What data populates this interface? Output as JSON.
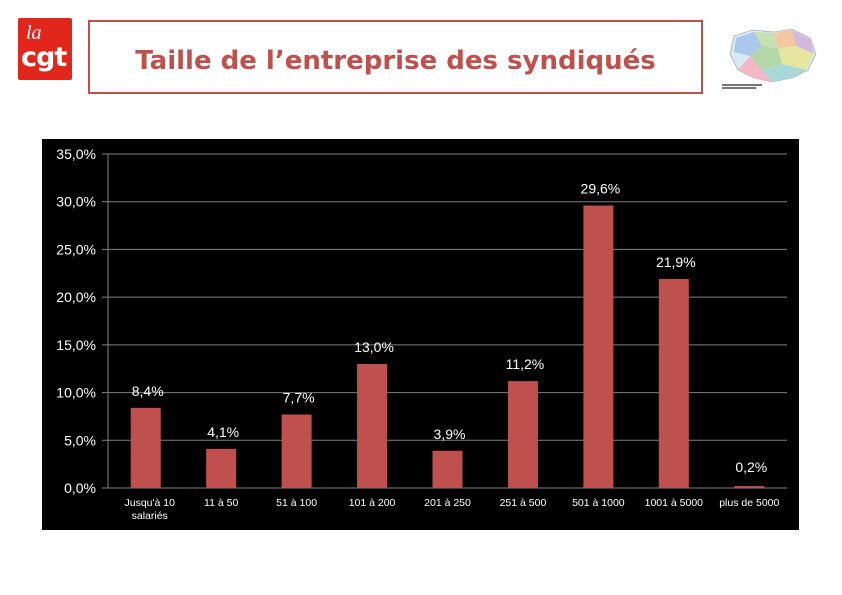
{
  "header": {
    "logo_top": "la",
    "logo_bottom": "cgt",
    "title": "Taille de l’entreprise des syndiqués"
  },
  "colors": {
    "bar": "#c0504d",
    "background": "#000000",
    "grid": "#7f7f7f",
    "text": "#ffffff",
    "accent": "#e2261c"
  },
  "chart_data": {
    "type": "bar",
    "title": "Taille de l’entreprise des syndiqués",
    "xlabel": "",
    "ylabel": "",
    "ylim": [
      0,
      35
    ],
    "ytick_labels": [
      "0,0%",
      "5,0%",
      "10,0%",
      "15,0%",
      "20,0%",
      "25,0%",
      "30,0%",
      "35,0%"
    ],
    "categories": [
      "Jusqu'à 10 salariés",
      "11 à 50",
      "51 à 100",
      "101 à 200",
      "201 à 250",
      "251 à 500",
      "501 à 1000",
      "1001 à 5000",
      "plus de 5000"
    ],
    "values": [
      8.4,
      4.1,
      7.7,
      13.0,
      3.9,
      11.2,
      29.6,
      21.9,
      0.2
    ],
    "data_labels": [
      "8,4%",
      "4,1%",
      "7,7%",
      "13,0%",
      "3,9%",
      "11,2%",
      "29,6%",
      "21,9%",
      "0,2%"
    ],
    "grid": true
  }
}
